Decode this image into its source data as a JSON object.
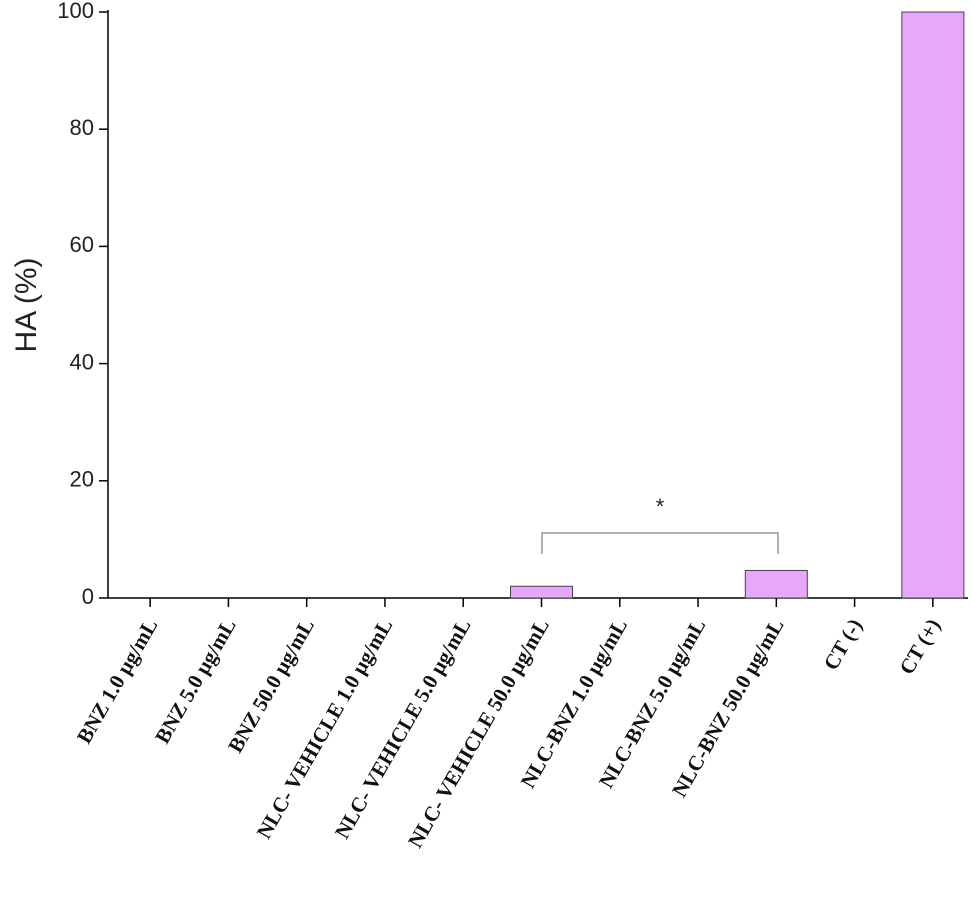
{
  "chart_data": {
    "type": "bar",
    "ylabel": "HA (%)",
    "categories": [
      "BNZ 1.0 µg/mL",
      "BNZ 5.0 µg/mL",
      "BNZ 50.0 µg/mL",
      "NLC- VEHICLE 1.0 µg/mL",
      "NLC- VEHICLE 5.0 µg/mL",
      "NLC- VEHICLE 50.0 µg/mL",
      "NLC-BNZ 1.0 µg/mL",
      "NLC-BNZ 5.0 µg/mL",
      "NLC-BNZ 50.0 µg/mL",
      "CT (-)",
      "CT (+)"
    ],
    "values": [
      0,
      0,
      0,
      0,
      0,
      2,
      0,
      0,
      4.7,
      0,
      100
    ],
    "color": "#e8a8fa",
    "ylim": [
      0,
      100
    ],
    "yticks": [
      0,
      20,
      40,
      60,
      80,
      100
    ],
    "annotation": "*"
  }
}
